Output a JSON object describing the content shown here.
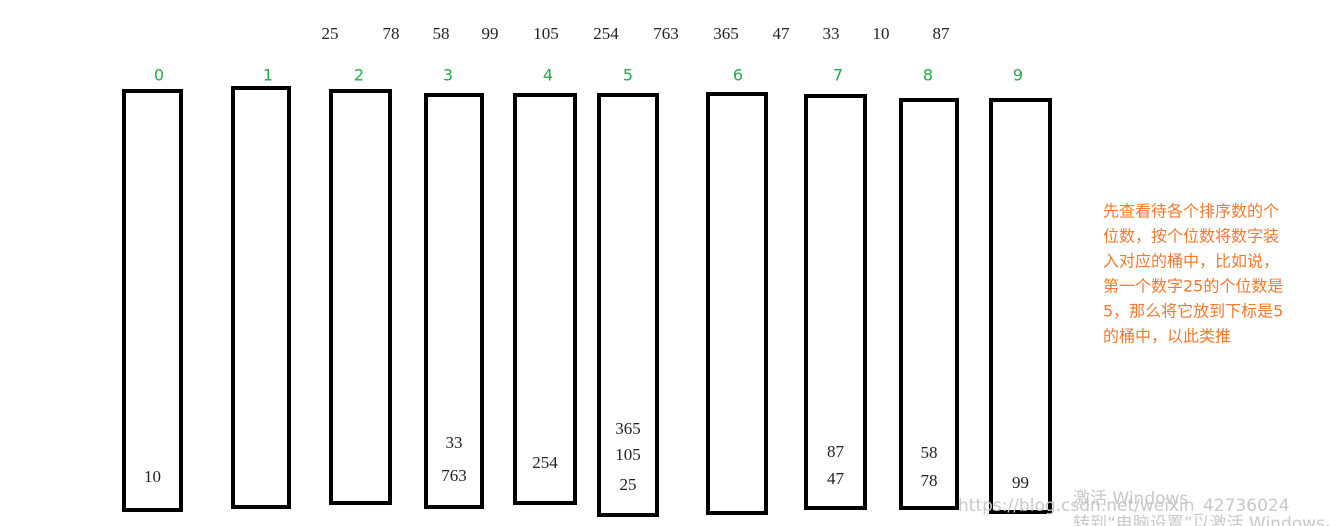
{
  "numbers": [
    "25",
    "78",
    "58",
    "99",
    "105",
    "254",
    "763",
    "365",
    "47",
    "33",
    "10",
    "87"
  ],
  "buckets": [
    {
      "index": "0",
      "items": [
        "10"
      ]
    },
    {
      "index": "1",
      "items": []
    },
    {
      "index": "2",
      "items": []
    },
    {
      "index": "3",
      "items": [
        "33",
        "763"
      ]
    },
    {
      "index": "4",
      "items": [
        "254"
      ]
    },
    {
      "index": "5",
      "items": [
        "365",
        "105",
        "25"
      ]
    },
    {
      "index": "6",
      "items": []
    },
    {
      "index": "7",
      "items": [
        "87",
        "47"
      ]
    },
    {
      "index": "8",
      "items": [
        "58",
        "78"
      ]
    },
    {
      "index": "9",
      "items": [
        "99"
      ]
    }
  ],
  "note": {
    "lines": [
      "先查看待各个排序数的个",
      "位数，按个位数将数字装",
      "入对应的桶中，比如说，",
      "第一个数字25的个位数是",
      "5，那么将它放到下标是5",
      "的桶中，以此类推"
    ]
  },
  "watermark": {
    "url": "https://blog.csdn.net/weixin_42736024",
    "activate": "激活 Windows",
    "hint": "转到“电脑设置”以激活 Windows。"
  }
}
